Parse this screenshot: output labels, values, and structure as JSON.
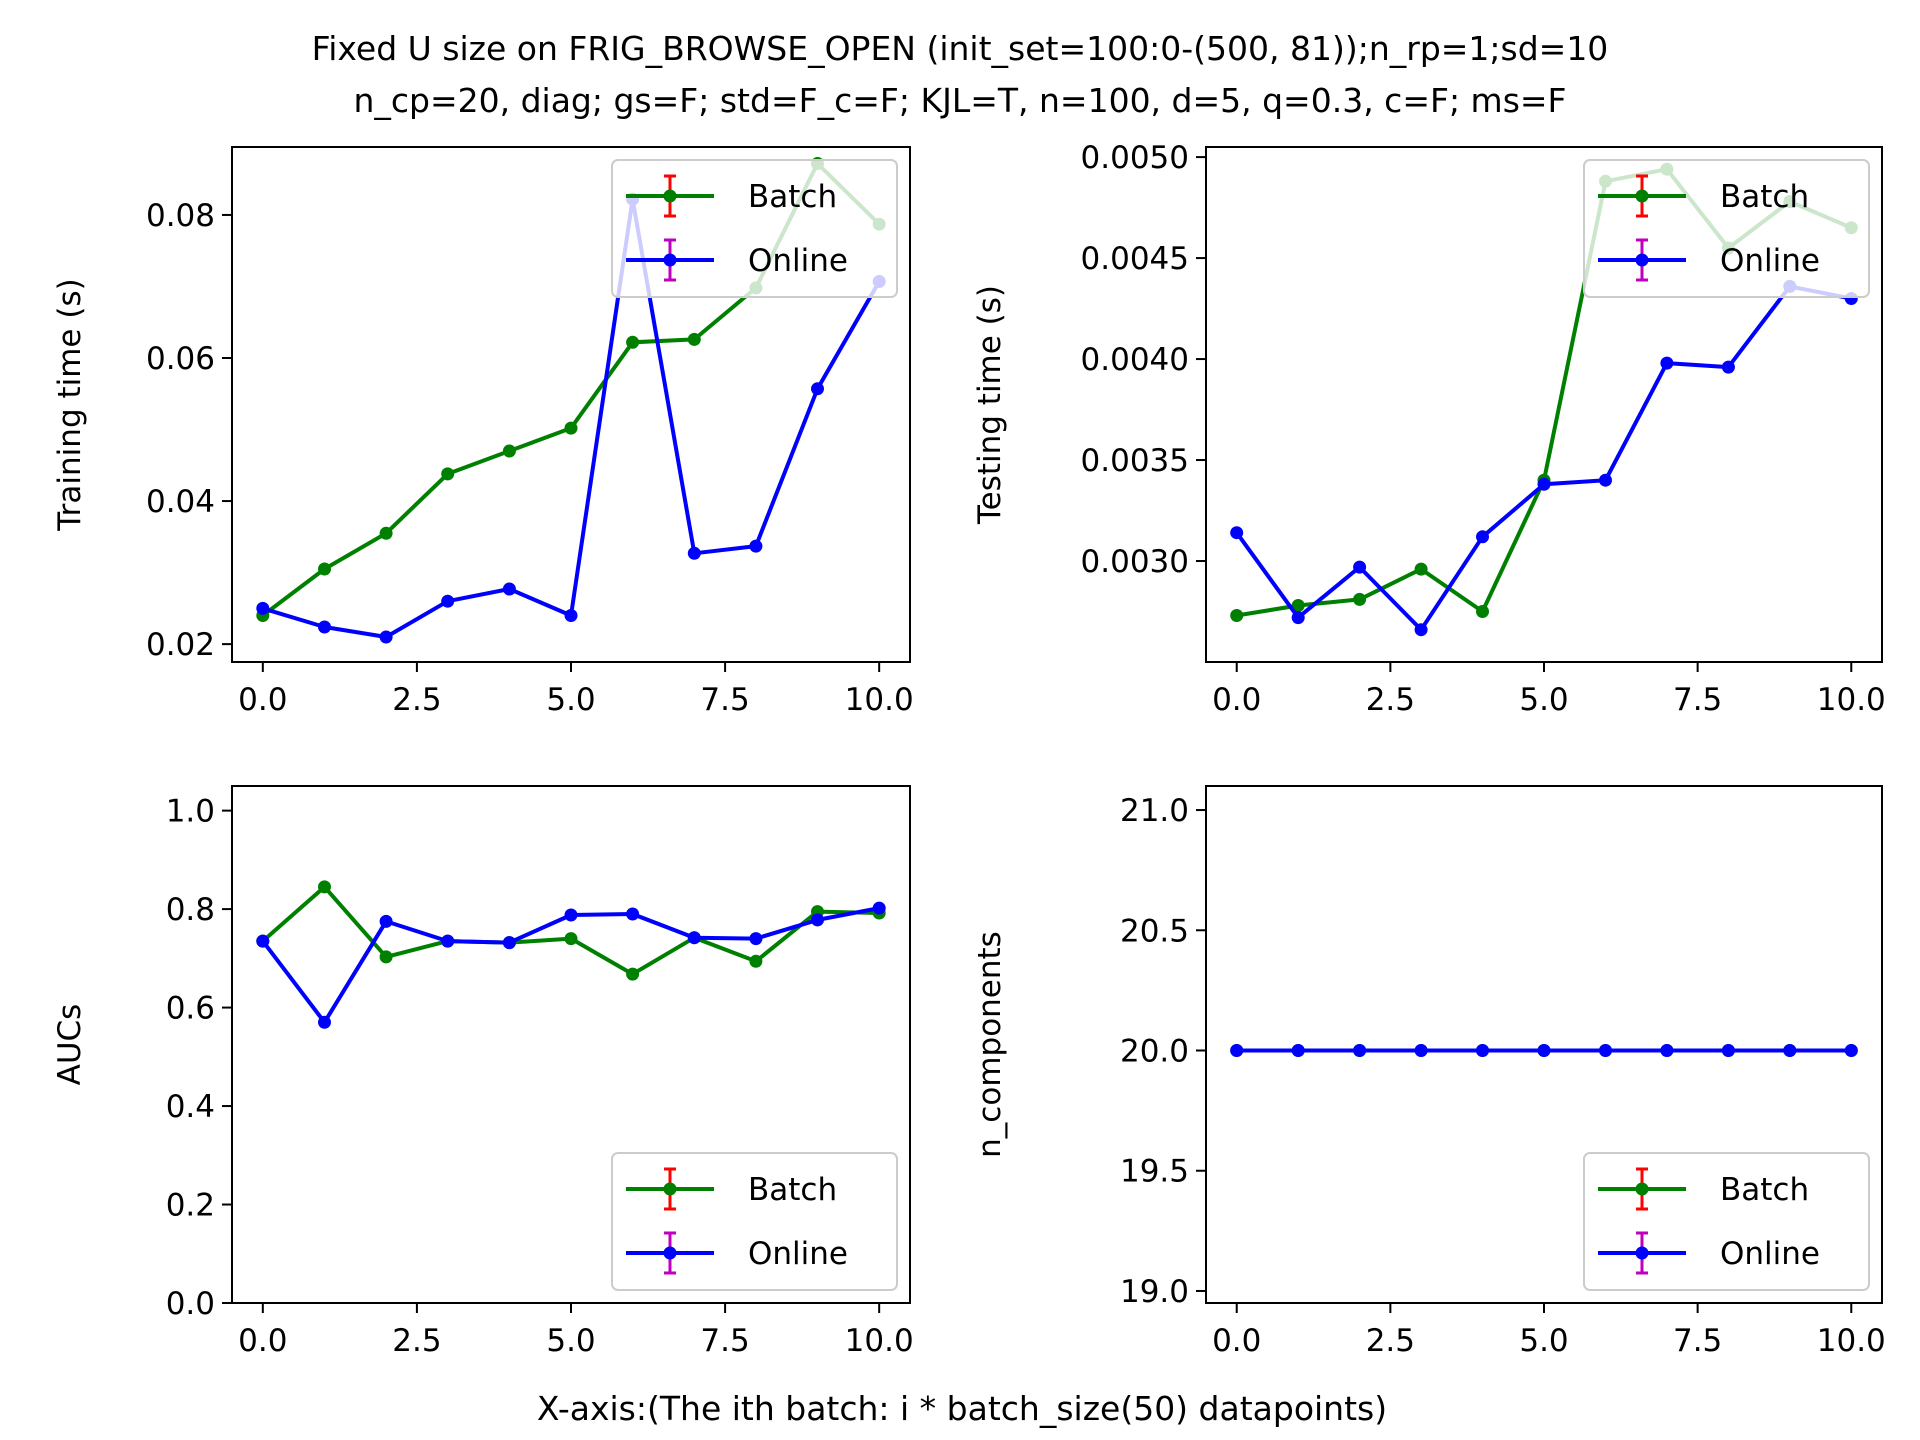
{
  "figure": {
    "title_line1": "Fixed U size on FRIG_BROWSE_OPEN (init_set=100:0-(500, 81));n_rp=1;sd=10",
    "title_line2": "n_cp=20, diag; gs=F; std=F_c=F; KJL=T, n=100, d=5, q=0.3, c=F; ms=F",
    "xlabel": "X-axis:(The ith batch: i * batch_size(50) datapoints)"
  },
  "colors": {
    "batch_line": "#008000",
    "online_line": "#0000ff",
    "batch_errbar": "#ff0000",
    "online_errbar": "#bf00bf"
  },
  "chart_data": [
    {
      "type": "line",
      "title": "",
      "ylabel": "Training time (s)",
      "xlim": [
        -0.5,
        10.5
      ],
      "ylim": [
        0.0175,
        0.0895
      ],
      "xticks": [
        0.0,
        2.5,
        5.0,
        7.5,
        10.0
      ],
      "xtick_labels": [
        "0.0",
        "2.5",
        "5.0",
        "7.5",
        "10.0"
      ],
      "yticks": [
        0.02,
        0.04,
        0.06,
        0.08
      ],
      "ytick_labels": [
        "0.02",
        "0.04",
        "0.06",
        "0.08"
      ],
      "grid": false,
      "legend": "upper right",
      "x": [
        0,
        1,
        2,
        3,
        4,
        5,
        6,
        7,
        8,
        9,
        10
      ],
      "series": [
        {
          "name": "Batch",
          "color": "#008000",
          "values": [
            0.024,
            0.0305,
            0.0355,
            0.0438,
            0.047,
            0.0502,
            0.0622,
            0.0626,
            0.0698,
            0.0872,
            0.0787
          ]
        },
        {
          "name": "Online",
          "color": "#0000ff",
          "values": [
            0.025,
            0.0224,
            0.021,
            0.026,
            0.0277,
            0.024,
            0.0822,
            0.0327,
            0.0337,
            0.0557,
            0.0707
          ]
        }
      ]
    },
    {
      "type": "line",
      "title": "",
      "ylabel": "Testing time (s)",
      "xlim": [
        -0.5,
        10.5
      ],
      "ylim": [
        0.0025,
        0.00505
      ],
      "xticks": [
        0.0,
        2.5,
        5.0,
        7.5,
        10.0
      ],
      "xtick_labels": [
        "0.0",
        "2.5",
        "5.0",
        "7.5",
        "10.0"
      ],
      "yticks": [
        0.003,
        0.0035,
        0.004,
        0.0045,
        0.005
      ],
      "ytick_labels": [
        "0.0030",
        "0.0035",
        "0.0040",
        "0.0045",
        "0.0050"
      ],
      "grid": false,
      "legend": "upper right",
      "x": [
        0,
        1,
        2,
        3,
        4,
        5,
        6,
        7,
        8,
        9,
        10
      ],
      "series": [
        {
          "name": "Batch",
          "color": "#008000",
          "values": [
            0.00273,
            0.00278,
            0.00281,
            0.00296,
            0.00275,
            0.0034,
            0.00488,
            0.00494,
            0.00455,
            0.00478,
            0.00465
          ]
        },
        {
          "name": "Online",
          "color": "#0000ff",
          "values": [
            0.00314,
            0.00272,
            0.00297,
            0.00266,
            0.00312,
            0.00338,
            0.0034,
            0.00398,
            0.00396,
            0.00436,
            0.0043
          ]
        }
      ]
    },
    {
      "type": "line",
      "title": "",
      "ylabel": "AUCs",
      "xlim": [
        -0.5,
        10.5
      ],
      "ylim": [
        0.0,
        1.05
      ],
      "xticks": [
        0.0,
        2.5,
        5.0,
        7.5,
        10.0
      ],
      "xtick_labels": [
        "0.0",
        "2.5",
        "5.0",
        "7.5",
        "10.0"
      ],
      "yticks": [
        0.0,
        0.2,
        0.4,
        0.6,
        0.8,
        1.0
      ],
      "ytick_labels": [
        "0.0",
        "0.2",
        "0.4",
        "0.6",
        "0.8",
        "1.0"
      ],
      "grid": false,
      "legend": "lower right",
      "x": [
        0,
        1,
        2,
        3,
        4,
        5,
        6,
        7,
        8,
        9,
        10
      ],
      "series": [
        {
          "name": "Batch",
          "color": "#008000",
          "values": [
            0.735,
            0.845,
            0.703,
            0.735,
            0.732,
            0.74,
            0.668,
            0.742,
            0.694,
            0.795,
            0.792
          ]
        },
        {
          "name": "Online",
          "color": "#0000ff",
          "values": [
            0.735,
            0.57,
            0.775,
            0.735,
            0.732,
            0.788,
            0.79,
            0.742,
            0.74,
            0.778,
            0.802
          ]
        }
      ]
    },
    {
      "type": "line",
      "title": "",
      "ylabel": "n_components",
      "xlim": [
        -0.5,
        10.5
      ],
      "ylim": [
        18.95,
        21.1
      ],
      "xticks": [
        0.0,
        2.5,
        5.0,
        7.5,
        10.0
      ],
      "xtick_labels": [
        "0.0",
        "2.5",
        "5.0",
        "7.5",
        "10.0"
      ],
      "yticks": [
        19.0,
        19.5,
        20.0,
        20.5,
        21.0
      ],
      "ytick_labels": [
        "19.0",
        "19.5",
        "20.0",
        "20.5",
        "21.0"
      ],
      "grid": false,
      "legend": "lower right",
      "x": [
        0,
        1,
        2,
        3,
        4,
        5,
        6,
        7,
        8,
        9,
        10
      ],
      "series": [
        {
          "name": "Batch",
          "color": "#008000",
          "values": [
            20,
            20,
            20,
            20,
            20,
            20,
            20,
            20,
            20,
            20,
            20
          ]
        },
        {
          "name": "Online",
          "color": "#0000ff",
          "values": [
            20,
            20,
            20,
            20,
            20,
            20,
            20,
            20,
            20,
            20,
            20
          ]
        }
      ]
    }
  ]
}
